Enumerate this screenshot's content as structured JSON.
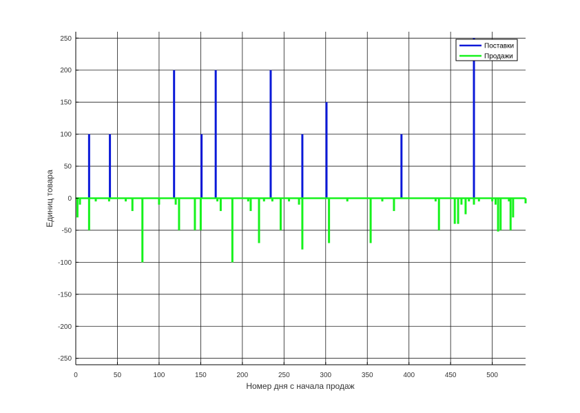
{
  "chart_data": {
    "type": "bar",
    "title": "",
    "xlabel": "Номер дня с начала продаж",
    "ylabel": "Единиц товара",
    "xlim": [
      0,
      540
    ],
    "ylim": [
      -260,
      260
    ],
    "x_ticks": [
      0,
      50,
      100,
      150,
      200,
      250,
      300,
      350,
      400,
      450,
      500
    ],
    "y_ticks": [
      -250,
      -200,
      -150,
      -100,
      -50,
      0,
      50,
      100,
      150,
      200,
      250
    ],
    "grid": true,
    "legend_position": "top-right",
    "series": [
      {
        "name": "Поставки",
        "color": "#0a19d8",
        "points": [
          {
            "x": 16,
            "y": 100
          },
          {
            "x": 41,
            "y": 100
          },
          {
            "x": 118,
            "y": 200
          },
          {
            "x": 151,
            "y": 100
          },
          {
            "x": 168,
            "y": 200
          },
          {
            "x": 234,
            "y": 200
          },
          {
            "x": 272,
            "y": 100
          },
          {
            "x": 301,
            "y": 150
          },
          {
            "x": 391,
            "y": 100
          },
          {
            "x": 478,
            "y": 250
          }
        ]
      },
      {
        "name": "Продажи",
        "color": "#16f21c",
        "points": [
          {
            "x": 2,
            "y": -30
          },
          {
            "x": 5,
            "y": -10
          },
          {
            "x": 16,
            "y": -50
          },
          {
            "x": 24,
            "y": -5
          },
          {
            "x": 40,
            "y": -5
          },
          {
            "x": 60,
            "y": -5
          },
          {
            "x": 68,
            "y": -20
          },
          {
            "x": 80,
            "y": -100
          },
          {
            "x": 100,
            "y": -10
          },
          {
            "x": 120,
            "y": -10
          },
          {
            "x": 124,
            "y": -50
          },
          {
            "x": 143,
            "y": -50
          },
          {
            "x": 150,
            "y": -50
          },
          {
            "x": 170,
            "y": -5
          },
          {
            "x": 174,
            "y": -20
          },
          {
            "x": 188,
            "y": -100
          },
          {
            "x": 207,
            "y": -5
          },
          {
            "x": 210,
            "y": -20
          },
          {
            "x": 220,
            "y": -70
          },
          {
            "x": 226,
            "y": -5
          },
          {
            "x": 236,
            "y": -5
          },
          {
            "x": 246,
            "y": -50
          },
          {
            "x": 256,
            "y": -5
          },
          {
            "x": 268,
            "y": -10
          },
          {
            "x": 272,
            "y": -80
          },
          {
            "x": 304,
            "y": -70
          },
          {
            "x": 326,
            "y": -5
          },
          {
            "x": 354,
            "y": -70
          },
          {
            "x": 368,
            "y": -5
          },
          {
            "x": 382,
            "y": -20
          },
          {
            "x": 432,
            "y": -5
          },
          {
            "x": 436,
            "y": -50
          },
          {
            "x": 455,
            "y": -40
          },
          {
            "x": 459,
            "y": -40
          },
          {
            "x": 463,
            "y": -10
          },
          {
            "x": 468,
            "y": -25
          },
          {
            "x": 472,
            "y": -5
          },
          {
            "x": 478,
            "y": -10
          },
          {
            "x": 484,
            "y": -5
          },
          {
            "x": 500,
            "y": -5
          },
          {
            "x": 504,
            "y": -10
          },
          {
            "x": 507,
            "y": -52
          },
          {
            "x": 510,
            "y": -50
          },
          {
            "x": 520,
            "y": -5
          },
          {
            "x": 522,
            "y": -50
          },
          {
            "x": 525,
            "y": -30
          },
          {
            "x": 540,
            "y": -8
          }
        ]
      }
    ]
  }
}
